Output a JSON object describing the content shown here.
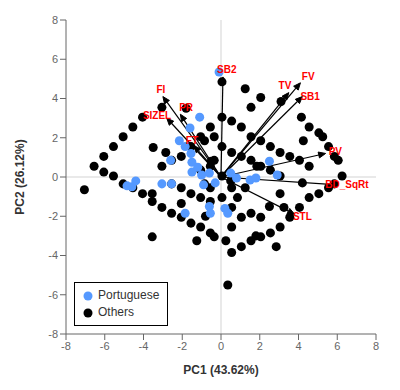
{
  "chart_data": {
    "type": "scatter",
    "xlabel": "PC1 (43.62%)",
    "ylabel": "PC2 (26.12%)",
    "xlim": [
      -8,
      8
    ],
    "ylim": [
      -8,
      8
    ],
    "xticks": [
      -8,
      -6,
      -4,
      -2,
      0,
      2,
      4,
      6,
      8
    ],
    "yticks": [
      -8,
      -6,
      -4,
      -2,
      0,
      2,
      4,
      6,
      8
    ],
    "grid": false,
    "legend": "lower left",
    "series": [
      {
        "name": "Portuguese",
        "color": "#5599ff",
        "values": [
          [
            -2.15,
            1.85
          ],
          [
            -1.85,
            1.55
          ],
          [
            -1.55,
            1.2
          ],
          [
            -1.5,
            0.25
          ],
          [
            -1.5,
            0.75
          ],
          [
            -1.2,
            0.5
          ],
          [
            -1.0,
            0.1
          ],
          [
            -0.9,
            -0.4
          ],
          [
            -0.6,
            0.2
          ],
          [
            -0.3,
            -0.3
          ],
          [
            -0.1,
            5.35
          ],
          [
            -1.1,
            3.05
          ],
          [
            -1.6,
            2.5
          ],
          [
            -2.6,
            0.85
          ],
          [
            -3.05,
            -0.35
          ],
          [
            -4.6,
            -0.5
          ],
          [
            -4.85,
            -0.45
          ],
          [
            -2.55,
            -0.35
          ],
          [
            0.2,
            -1.6
          ],
          [
            0.35,
            -1.85
          ],
          [
            -0.55,
            -1.85
          ],
          [
            -1.85,
            -1.85
          ],
          [
            1.5,
            -0.15
          ],
          [
            2.5,
            0.8
          ],
          [
            2.9,
            0.1
          ],
          [
            1.8,
            -0.05
          ],
          [
            0.5,
            0.2
          ],
          [
            0.8,
            -0.05
          ],
          [
            -4.4,
            -0.2
          ],
          [
            -0.6,
            -1.5
          ]
        ]
      },
      {
        "name": "Others",
        "color": "black",
        "values": [
          [
            0.05,
            4.85
          ],
          [
            1.25,
            4.5
          ],
          [
            2.05,
            4.05
          ],
          [
            3.1,
            3.85
          ],
          [
            4.15,
            3.05
          ],
          [
            4.55,
            2.55
          ],
          [
            5.05,
            2.25
          ],
          [
            5.25,
            2.05
          ],
          [
            5.55,
            1.55
          ],
          [
            5.85,
            1.05
          ],
          [
            6.05,
            0.85
          ],
          [
            6.25,
            0.05
          ],
          [
            5.85,
            -0.35
          ],
          [
            5.55,
            -0.55
          ],
          [
            5.05,
            -0.85
          ],
          [
            4.55,
            -1.05
          ],
          [
            4.05,
            -1.55
          ],
          [
            3.55,
            -2.05
          ],
          [
            3.05,
            -2.55
          ],
          [
            2.55,
            -2.85
          ],
          [
            2.05,
            -3.05
          ],
          [
            1.55,
            -3.25
          ],
          [
            1.05,
            -3.55
          ],
          [
            0.55,
            -3.85
          ],
          [
            0.35,
            -5.5
          ],
          [
            0.25,
            -3.25
          ],
          [
            -0.35,
            -3.05
          ],
          [
            -0.55,
            -2.85
          ],
          [
            -1.05,
            -2.55
          ],
          [
            -1.55,
            -2.35
          ],
          [
            -2.05,
            -2.05
          ],
          [
            -2.55,
            -1.85
          ],
          [
            -3.05,
            -1.55
          ],
          [
            -3.55,
            -1.25
          ],
          [
            -4.05,
            -0.85
          ],
          [
            -4.55,
            -0.55
          ],
          [
            -5.05,
            -0.35
          ],
          [
            -5.55,
            0.05
          ],
          [
            -6.05,
            0.25
          ],
          [
            -7.05,
            -0.65
          ],
          [
            -6.55,
            0.55
          ],
          [
            -6.05,
            1.05
          ],
          [
            -5.55,
            1.55
          ],
          [
            -5.05,
            2.05
          ],
          [
            -4.55,
            2.55
          ],
          [
            -4.05,
            3.05
          ],
          [
            -3.55,
            -3.05
          ],
          [
            -3.05,
            0.55
          ],
          [
            -2.55,
            0.85
          ],
          [
            -2.05,
            1.05
          ],
          [
            -1.55,
            1.55
          ],
          [
            -1.05,
            2.05
          ],
          [
            -0.55,
            2.55
          ],
          [
            0.05,
            3.05
          ],
          [
            0.55,
            2.85
          ],
          [
            1.05,
            2.55
          ],
          [
            1.55,
            2.05
          ],
          [
            2.05,
            1.85
          ],
          [
            2.55,
            1.55
          ],
          [
            3.05,
            1.25
          ],
          [
            3.55,
            1.05
          ],
          [
            4.05,
            0.85
          ],
          [
            4.55,
            0.55
          ],
          [
            0.05,
            1.55
          ],
          [
            0.55,
            1.25
          ],
          [
            1.05,
            1.05
          ],
          [
            1.55,
            0.85
          ],
          [
            2.05,
            0.55
          ],
          [
            2.55,
            0.35
          ],
          [
            3.05,
            0.05
          ],
          [
            -0.55,
            -0.55
          ],
          [
            -1.05,
            -1.05
          ],
          [
            -1.55,
            -0.85
          ],
          [
            -2.05,
            -0.55
          ],
          [
            -2.55,
            -0.35
          ],
          [
            0.05,
            -1.05
          ],
          [
            0.55,
            -1.55
          ],
          [
            1.05,
            -2.05
          ],
          [
            1.55,
            -1.85
          ],
          [
            2.05,
            -2.05
          ],
          [
            -0.55,
            0.55
          ],
          [
            0.05,
            0.05
          ],
          [
            0.55,
            -0.55
          ],
          [
            -3.05,
            3.55
          ],
          [
            -0.35,
            0.85
          ],
          [
            -0.85,
            -0.35
          ],
          [
            1.55,
            3.55
          ],
          [
            2.85,
            -3.55
          ],
          [
            -1.25,
            -3.25
          ],
          [
            0.55,
            -2.55
          ],
          [
            -0.85,
            1.85
          ],
          [
            4.25,
            1.85
          ],
          [
            -3.55,
            -0.85
          ],
          [
            3.25,
            -1.55
          ],
          [
            -0.55,
            -1.25
          ],
          [
            1.85,
            0.55
          ],
          [
            -2.85,
            1.25
          ],
          [
            -2.05,
            -1.35
          ],
          [
            0.85,
            -1.05
          ],
          [
            -1.05,
            0.35
          ],
          [
            3.05,
            -0.85
          ],
          [
            -0.35,
            2.05
          ],
          [
            1.25,
            -0.55
          ],
          [
            -0.5,
            0.8
          ],
          [
            1.8,
            -3.0
          ],
          [
            4.2,
            -0.3
          ],
          [
            -1.8,
            3.5
          ],
          [
            -0.8,
            -2.0
          ],
          [
            2.5,
            -1.5
          ],
          [
            -3.5,
            1.5
          ],
          [
            0.5,
            -0.2
          ]
        ]
      }
    ],
    "arrows": {
      "color": "black",
      "labels": {
        "color": "red"
      },
      "items": [
        {
          "text": "SB2",
          "x": 0.1,
          "y": 5.1,
          "label_x": 0.3,
          "label_y": 5.5
        },
        {
          "text": "FV",
          "x": 4.1,
          "y": 4.8,
          "label_x": 4.5,
          "label_y": 5.1
        },
        {
          "text": "TV",
          "x": 3.5,
          "y": 4.3,
          "label_x": 3.3,
          "label_y": 4.65
        },
        {
          "text": "SB1",
          "x": 4.2,
          "y": 4.1,
          "label_x": 4.6,
          "label_y": 4.1
        },
        {
          "text": "PV",
          "x": 5.4,
          "y": 1.2,
          "label_x": 5.9,
          "label_y": 1.3
        },
        {
          "text": "BD_SqRt",
          "x": 6.0,
          "y": -0.4,
          "label_x": 6.5,
          "label_y": -0.4
        },
        {
          "text": "STL",
          "x": 3.8,
          "y": -1.9,
          "label_x": 4.2,
          "label_y": -2.0
        },
        {
          "text": "FT",
          "x": -1.4,
          "y": 1.6,
          "label_x": -1.5,
          "label_y": 1.85
        },
        {
          "text": "PR",
          "x": -2.1,
          "y": 3.2,
          "label_x": -1.8,
          "label_y": 3.55
        },
        {
          "text": "SIZEL",
          "x": -2.8,
          "y": 3.0,
          "label_x": -3.3,
          "label_y": 3.15
        },
        {
          "text": "FI",
          "x": -3.0,
          "y": 4.1,
          "label_x": -3.1,
          "label_y": 4.45
        }
      ]
    },
    "reference_lines": [
      {
        "x": 0,
        "color": "lightgray"
      },
      {
        "y": 0,
        "color": "lightgray"
      }
    ]
  }
}
